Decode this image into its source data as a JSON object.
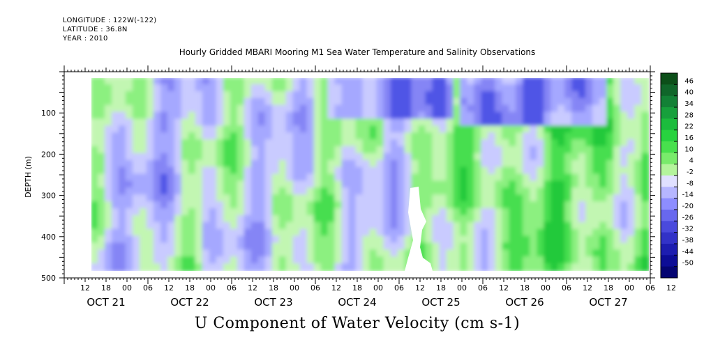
{
  "header": {
    "longitude": "LONGITUDE : 122W(-122)",
    "latitude": "LATITUDE : 36.8N",
    "year": "YEAR : 2010",
    "title": "Hourly Gridded MBARI Mooring M1 Sea Water Temperature and Salinity Observations"
  },
  "caption": "U Component of Water Velocity (cm s-1)",
  "chart_data": {
    "type": "heatmap",
    "title": "Hourly Gridded MBARI Mooring M1 Sea Water Temperature and Salinity Observations",
    "xlabel": "",
    "ylabel": "DEPTH (m)",
    "variable": "U Component of Water Velocity (cm s-1)",
    "x_range_hours": [
      0,
      168
    ],
    "x_hour_ticks": [
      "12",
      "18",
      "00",
      "06",
      "12",
      "18",
      "00",
      "06",
      "12",
      "18",
      "00",
      "06",
      "12",
      "18",
      "00",
      "06",
      "12",
      "18",
      "00",
      "06",
      "12",
      "18",
      "00",
      "06",
      "12",
      "18",
      "00",
      "06",
      "12"
    ],
    "x_day_labels": [
      "OCT 21",
      "OCT 22",
      "OCT 23",
      "OCT 24",
      "OCT 25",
      "OCT 26",
      "OCT 27"
    ],
    "ylim": [
      500,
      0
    ],
    "y_ticks": [
      100,
      200,
      300,
      400,
      500
    ],
    "colorbar_levels": [
      "46",
      "40",
      "34",
      "28",
      "22",
      "16",
      "10",
      "4",
      "-2",
      "-8",
      "-14",
      "-20",
      "-26",
      "-32",
      "-38",
      "-44",
      "-50"
    ],
    "colorbar_colors": [
      "#0c4f19",
      "#10662a",
      "#138136",
      "#17a03c",
      "#1cbc3d",
      "#28d33f",
      "#48e04d",
      "#79eb6b",
      "#b4f49c",
      "#e0e0ff",
      "#b6b6ff",
      "#8d8dff",
      "#6868ee",
      "#4a4add",
      "#3232c8",
      "#1d1db0",
      "#0d0d96",
      "#050572"
    ]
  },
  "colors": {
    "green_strong": "#21c93b",
    "green": "#46de4f",
    "green_light": "#8cf080",
    "green_pale": "#c2f6b2",
    "blue_pale": "#c9cbff",
    "blue_light": "#a5a8ff",
    "blue": "#8585f5",
    "blue_strong": "#4f55e6"
  }
}
